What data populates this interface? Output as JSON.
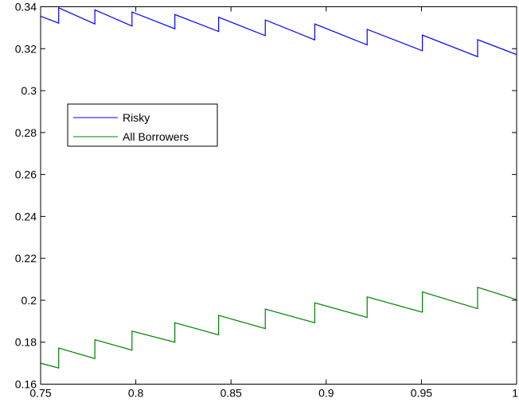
{
  "chart_data": {
    "type": "line",
    "xlim": [
      0.75,
      1.0
    ],
    "ylim": [
      0.16,
      0.34
    ],
    "x_ticks": [
      "0.75",
      "0.8",
      "0.85",
      "0.9",
      "0.95",
      "1"
    ],
    "x_tick_values": [
      0.75,
      0.8,
      0.85,
      0.9,
      0.95,
      1.0
    ],
    "y_ticks": [
      "0.16",
      "0.18",
      "0.2",
      "0.22",
      "0.24",
      "0.26",
      "0.28",
      "0.3",
      "0.32",
      "0.34"
    ],
    "y_tick_values": [
      0.16,
      0.18,
      0.2,
      0.22,
      0.24,
      0.26,
      0.28,
      0.3,
      0.32,
      0.34
    ],
    "grid": false,
    "legend_position": "upper-left",
    "series": [
      {
        "name": "Risky",
        "color": "#0000ff",
        "x": [
          0.75,
          0.7595,
          0.7595,
          0.7785,
          0.7785,
          0.798,
          0.798,
          0.8205,
          0.8205,
          0.8435,
          0.8435,
          0.868,
          0.868,
          0.894,
          0.894,
          0.9215,
          0.9215,
          0.9505,
          0.9505,
          0.9795,
          0.9795,
          1.0
        ],
        "y": [
          0.3355,
          0.3322,
          0.3395,
          0.3318,
          0.3385,
          0.3308,
          0.3375,
          0.3295,
          0.3363,
          0.3282,
          0.335,
          0.3262,
          0.3337,
          0.3242,
          0.3318,
          0.3218,
          0.3292,
          0.319,
          0.3265,
          0.3162,
          0.3243,
          0.3172
        ]
      },
      {
        "name": "All Borrowers",
        "color": "#008000",
        "x": [
          0.75,
          0.7595,
          0.7595,
          0.7785,
          0.7785,
          0.798,
          0.798,
          0.8205,
          0.8205,
          0.8435,
          0.8435,
          0.868,
          0.868,
          0.894,
          0.894,
          0.9215,
          0.9215,
          0.9505,
          0.9505,
          0.9795,
          0.9795,
          1.0
        ],
        "y": [
          0.17,
          0.1677,
          0.1772,
          0.1722,
          0.1812,
          0.1762,
          0.1853,
          0.18,
          0.1893,
          0.1835,
          0.1928,
          0.1865,
          0.1958,
          0.1893,
          0.1988,
          0.1918,
          0.2016,
          0.1943,
          0.204,
          0.196,
          0.2062,
          0.2003
        ]
      }
    ]
  }
}
